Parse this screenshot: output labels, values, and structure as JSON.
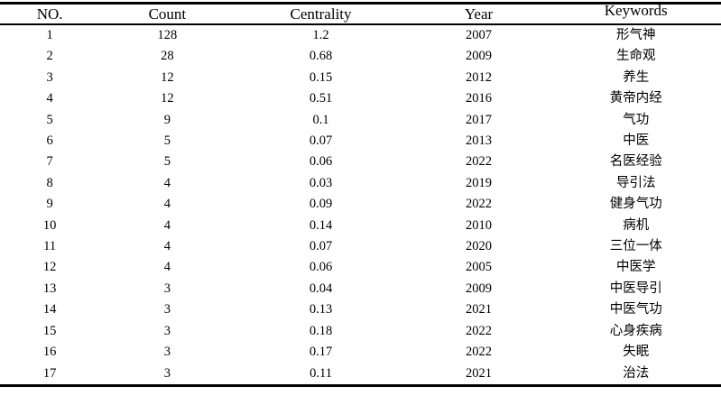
{
  "colors": {
    "text": "#000000",
    "background": "#ffffff",
    "rule": "#000000"
  },
  "table": {
    "columns": [
      {
        "key": "no",
        "label": "NO."
      },
      {
        "key": "count",
        "label": "Count"
      },
      {
        "key": "centrality",
        "label": "Centrality"
      },
      {
        "key": "year",
        "label": "Year"
      },
      {
        "key": "keyword",
        "label": "Keywords"
      }
    ],
    "rows": [
      {
        "no": "1",
        "count": "128",
        "centrality": "1.2",
        "year": "2007",
        "keyword": "形气神"
      },
      {
        "no": "2",
        "count": "28",
        "centrality": "0.68",
        "year": "2009",
        "keyword": "生命观"
      },
      {
        "no": "3",
        "count": "12",
        "centrality": "0.15",
        "year": "2012",
        "keyword": "养生"
      },
      {
        "no": "4",
        "count": "12",
        "centrality": "0.51",
        "year": "2016",
        "keyword": "黄帝内经"
      },
      {
        "no": "5",
        "count": "9",
        "centrality": "0.1",
        "year": "2017",
        "keyword": "气功"
      },
      {
        "no": "6",
        "count": "5",
        "centrality": "0.07",
        "year": "2013",
        "keyword": "中医"
      },
      {
        "no": "7",
        "count": "5",
        "centrality": "0.06",
        "year": "2022",
        "keyword": "名医经验"
      },
      {
        "no": "8",
        "count": "4",
        "centrality": "0.03",
        "year": "2019",
        "keyword": "导引法"
      },
      {
        "no": "9",
        "count": "4",
        "centrality": "0.09",
        "year": "2022",
        "keyword": "健身气功"
      },
      {
        "no": "10",
        "count": "4",
        "centrality": "0.14",
        "year": "2010",
        "keyword": "病机"
      },
      {
        "no": "11",
        "count": "4",
        "centrality": "0.07",
        "year": "2020",
        "keyword": "三位一体"
      },
      {
        "no": "12",
        "count": "4",
        "centrality": "0.06",
        "year": "2005",
        "keyword": "中医学"
      },
      {
        "no": "13",
        "count": "3",
        "centrality": "0.04",
        "year": "2009",
        "keyword": "中医导引"
      },
      {
        "no": "14",
        "count": "3",
        "centrality": "0.13",
        "year": "2021",
        "keyword": "中医气功"
      },
      {
        "no": "15",
        "count": "3",
        "centrality": "0.18",
        "year": "2022",
        "keyword": "心身疾病"
      },
      {
        "no": "16",
        "count": "3",
        "centrality": "0.17",
        "year": "2022",
        "keyword": "失眠"
      },
      {
        "no": "17",
        "count": "3",
        "centrality": "0.11",
        "year": "2021",
        "keyword": "治法"
      }
    ]
  }
}
